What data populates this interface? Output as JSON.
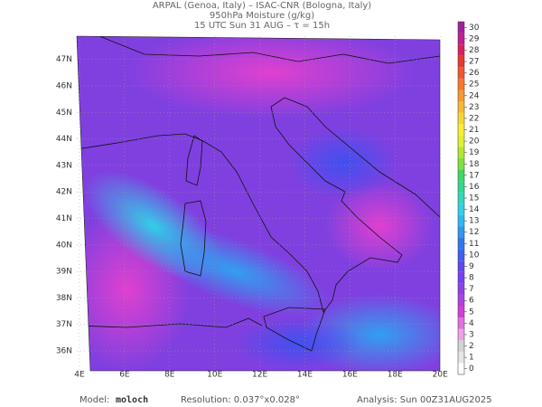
{
  "header": {
    "lines": [
      "ARPAL (Genoa, Italy)  –  ISAC-CNR (Bologna, Italy)",
      "950hPa Moisture (g/kg)",
      "15 UTC Sun 31 AUG  –  τ = 15h"
    ]
  },
  "map": {
    "lat_labels": [
      "36N",
      "37N",
      "38N",
      "39N",
      "40N",
      "41N",
      "42N",
      "43N",
      "44N",
      "45N",
      "46N",
      "47N"
    ],
    "lon_labels": [
      "4E",
      "6E",
      "8E",
      "10E",
      "12E",
      "14E",
      "16E",
      "18E",
      "20E"
    ]
  },
  "colorbar": {
    "range": [
      0,
      31
    ],
    "ticks": [
      0,
      1,
      2,
      3,
      4,
      5,
      6,
      7,
      8,
      9,
      10,
      11,
      12,
      13,
      14,
      15,
      16,
      17,
      18,
      19,
      20,
      21,
      22,
      23,
      24,
      25,
      26,
      27,
      28,
      29,
      30
    ],
    "colors": [
      "#ffffff",
      "#e6e6e6",
      "#d2d2d2",
      "#f0a0e6",
      "#e070e0",
      "#d040d8",
      "#b040e0",
      "#9040e8",
      "#7a40f0",
      "#6048f0",
      "#4060f0",
      "#3078f0",
      "#3098f0",
      "#30b8f0",
      "#30d0e8",
      "#30d8c0",
      "#30d890",
      "#40d860",
      "#80e040",
      "#b0e830",
      "#e0f030",
      "#f8f030",
      "#f8d830",
      "#f8b830",
      "#f89830",
      "#f87830",
      "#f05830",
      "#e83830",
      "#d82060",
      "#c02090",
      "#a020a0"
    ]
  },
  "footer": {
    "model_label": "Model:",
    "model": "moloch",
    "resolution": "Resolution: 0.037°x0.028°",
    "analysis": "Analysis: Sun 00Z31AUG2025"
  }
}
